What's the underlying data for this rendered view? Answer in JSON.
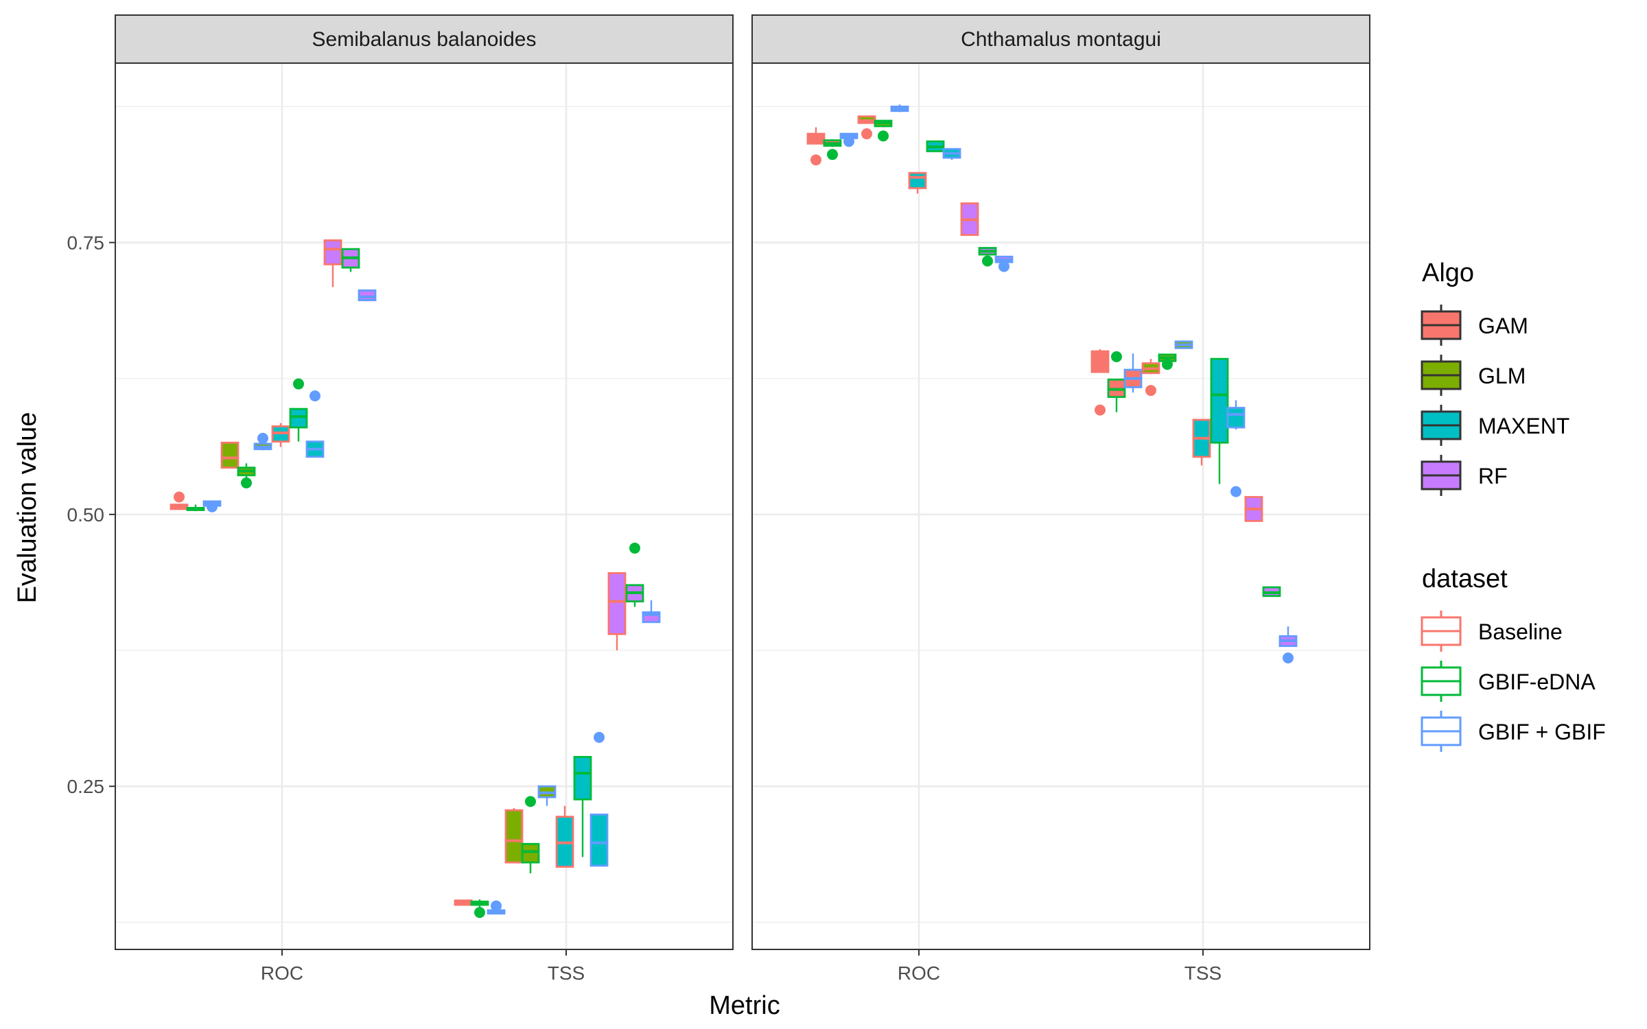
{
  "chart_data": {
    "type": "box",
    "xlabel": "Metric",
    "ylabel": "Evaluation value",
    "ylim": [
      0.1,
      0.915
    ],
    "yticks": [
      0.25,
      0.5,
      0.75
    ],
    "ytick_labels": [
      "0.25",
      "0.50",
      "0.75"
    ],
    "categories": [
      "ROC",
      "TSS"
    ],
    "grid": true,
    "legend_placement": "right",
    "algos": [
      {
        "name": "GAM",
        "color": "#F8766D"
      },
      {
        "name": "GLM",
        "color": "#7CAE00"
      },
      {
        "name": "MAXENT",
        "color": "#00BFC4"
      },
      {
        "name": "RF",
        "color": "#C77CFF"
      }
    ],
    "datasets": [
      {
        "name": "Baseline",
        "color": "#F8766D"
      },
      {
        "name": "GBIF-eDNA",
        "color": "#00BA38"
      },
      {
        "name": "GBIF + GBIF",
        "color": "#619CFF"
      }
    ],
    "legend": {
      "algo_title": "Algo",
      "dataset_title": "dataset"
    },
    "panels": [
      {
        "title": "Semibalanus balanoides",
        "boxes": [
          {
            "metric": "ROC",
            "algo": "GAM",
            "dataset": "Baseline",
            "min": 0.504,
            "q1": 0.505,
            "median": 0.507,
            "q3": 0.509,
            "max": 0.509,
            "outliers": [
              0.516
            ]
          },
          {
            "metric": "ROC",
            "algo": "GAM",
            "dataset": "GBIF-eDNA",
            "min": 0.503,
            "q1": 0.504,
            "median": 0.505,
            "q3": 0.506,
            "max": 0.509,
            "outliers": []
          },
          {
            "metric": "ROC",
            "algo": "GAM",
            "dataset": "GBIF + GBIF",
            "min": 0.506,
            "q1": 0.508,
            "median": 0.51,
            "q3": 0.512,
            "max": 0.512,
            "outliers": [
              0.507
            ]
          },
          {
            "metric": "ROC",
            "algo": "GLM",
            "dataset": "Baseline",
            "min": 0.543,
            "q1": 0.543,
            "median": 0.552,
            "q3": 0.566,
            "max": 0.566,
            "outliers": []
          },
          {
            "metric": "ROC",
            "algo": "GLM",
            "dataset": "GBIF-eDNA",
            "min": 0.534,
            "q1": 0.536,
            "median": 0.54,
            "q3": 0.543,
            "max": 0.547,
            "outliers": [
              0.529
            ]
          },
          {
            "metric": "ROC",
            "algo": "GLM",
            "dataset": "GBIF + GBIF",
            "min": 0.559,
            "q1": 0.56,
            "median": 0.562,
            "q3": 0.565,
            "max": 0.565,
            "outliers": [
              0.57
            ]
          },
          {
            "metric": "ROC",
            "algo": "MAXENT",
            "dataset": "Baseline",
            "min": 0.562,
            "q1": 0.567,
            "median": 0.575,
            "q3": 0.581,
            "max": 0.584,
            "outliers": []
          },
          {
            "metric": "ROC",
            "algo": "MAXENT",
            "dataset": "GBIF-eDNA",
            "min": 0.567,
            "q1": 0.58,
            "median": 0.59,
            "q3": 0.597,
            "max": 0.597,
            "outliers": [
              0.62
            ]
          },
          {
            "metric": "ROC",
            "algo": "MAXENT",
            "dataset": "GBIF + GBIF",
            "min": 0.553,
            "q1": 0.553,
            "median": 0.56,
            "q3": 0.567,
            "max": 0.567,
            "outliers": [
              0.609
            ]
          },
          {
            "metric": "ROC",
            "algo": "RF",
            "dataset": "Baseline",
            "min": 0.709,
            "q1": 0.73,
            "median": 0.744,
            "q3": 0.752,
            "max": 0.752,
            "outliers": []
          },
          {
            "metric": "ROC",
            "algo": "RF",
            "dataset": "GBIF-eDNA",
            "min": 0.723,
            "q1": 0.727,
            "median": 0.736,
            "q3": 0.744,
            "max": 0.744,
            "outliers": []
          },
          {
            "metric": "ROC",
            "algo": "RF",
            "dataset": "GBIF + GBIF",
            "min": 0.696,
            "q1": 0.697,
            "median": 0.7,
            "q3": 0.706,
            "max": 0.706,
            "outliers": []
          },
          {
            "metric": "TSS",
            "algo": "GAM",
            "dataset": "Baseline",
            "min": 0.141,
            "q1": 0.141,
            "median": 0.142,
            "q3": 0.145,
            "max": 0.145,
            "outliers": []
          },
          {
            "metric": "TSS",
            "algo": "GAM",
            "dataset": "GBIF-eDNA",
            "min": 0.139,
            "q1": 0.141,
            "median": 0.142,
            "q3": 0.144,
            "max": 0.146,
            "outliers": [
              0.134
            ]
          },
          {
            "metric": "TSS",
            "algo": "GAM",
            "dataset": "GBIF + GBIF",
            "min": 0.133,
            "q1": 0.133,
            "median": 0.135,
            "q3": 0.136,
            "max": 0.137,
            "outliers": [
              0.14
            ]
          },
          {
            "metric": "TSS",
            "algo": "GLM",
            "dataset": "Baseline",
            "min": 0.18,
            "q1": 0.18,
            "median": 0.2,
            "q3": 0.228,
            "max": 0.23,
            "outliers": []
          },
          {
            "metric": "TSS",
            "algo": "GLM",
            "dataset": "GBIF-eDNA",
            "min": 0.17,
            "q1": 0.18,
            "median": 0.19,
            "q3": 0.197,
            "max": 0.197,
            "outliers": [
              0.236
            ]
          },
          {
            "metric": "TSS",
            "algo": "GLM",
            "dataset": "GBIF + GBIF",
            "min": 0.232,
            "q1": 0.24,
            "median": 0.244,
            "q3": 0.25,
            "max": 0.25,
            "outliers": []
          },
          {
            "metric": "TSS",
            "algo": "MAXENT",
            "dataset": "Baseline",
            "min": 0.176,
            "q1": 0.176,
            "median": 0.198,
            "q3": 0.222,
            "max": 0.232,
            "outliers": []
          },
          {
            "metric": "TSS",
            "algo": "MAXENT",
            "dataset": "GBIF-eDNA",
            "min": 0.185,
            "q1": 0.238,
            "median": 0.262,
            "q3": 0.277,
            "max": 0.277,
            "outliers": []
          },
          {
            "metric": "TSS",
            "algo": "MAXENT",
            "dataset": "GBIF + GBIF",
            "min": 0.177,
            "q1": 0.177,
            "median": 0.198,
            "q3": 0.224,
            "max": 0.224,
            "outliers": [
              0.295
            ]
          },
          {
            "metric": "TSS",
            "algo": "RF",
            "dataset": "Baseline",
            "min": 0.375,
            "q1": 0.39,
            "median": 0.42,
            "q3": 0.446,
            "max": 0.446,
            "outliers": []
          },
          {
            "metric": "TSS",
            "algo": "RF",
            "dataset": "GBIF-eDNA",
            "min": 0.415,
            "q1": 0.42,
            "median": 0.428,
            "q3": 0.435,
            "max": 0.435,
            "outliers": [
              0.469
            ]
          },
          {
            "metric": "TSS",
            "algo": "RF",
            "dataset": "GBIF + GBIF",
            "min": 0.401,
            "q1": 0.401,
            "median": 0.408,
            "q3": 0.41,
            "max": 0.421,
            "outliers": []
          }
        ]
      },
      {
        "title": "Chthamalus montagui",
        "boxes": [
          {
            "metric": "ROC",
            "algo": "GAM",
            "dataset": "Baseline",
            "min": 0.841,
            "q1": 0.841,
            "median": 0.845,
            "q3": 0.85,
            "max": 0.856,
            "outliers": [
              0.826
            ]
          },
          {
            "metric": "ROC",
            "algo": "GAM",
            "dataset": "GBIF-eDNA",
            "min": 0.838,
            "q1": 0.839,
            "median": 0.841,
            "q3": 0.844,
            "max": 0.845,
            "outliers": [
              0.831
            ]
          },
          {
            "metric": "ROC",
            "algo": "GAM",
            "dataset": "GBIF + GBIF",
            "min": 0.843,
            "q1": 0.846,
            "median": 0.848,
            "q3": 0.85,
            "max": 0.85,
            "outliers": [
              0.843
            ]
          },
          {
            "metric": "ROC",
            "algo": "GLM",
            "dataset": "Baseline",
            "min": 0.859,
            "q1": 0.86,
            "median": 0.862,
            "q3": 0.866,
            "max": 0.866,
            "outliers": [
              0.85
            ]
          },
          {
            "metric": "ROC",
            "algo": "GLM",
            "dataset": "GBIF-eDNA",
            "min": 0.856,
            "q1": 0.857,
            "median": 0.86,
            "q3": 0.862,
            "max": 0.862,
            "outliers": [
              0.848
            ]
          },
          {
            "metric": "ROC",
            "algo": "GLM",
            "dataset": "GBIF + GBIF",
            "min": 0.87,
            "q1": 0.871,
            "median": 0.873,
            "q3": 0.875,
            "max": 0.877,
            "outliers": []
          },
          {
            "metric": "ROC",
            "algo": "MAXENT",
            "dataset": "Baseline",
            "min": 0.795,
            "q1": 0.8,
            "median": 0.81,
            "q3": 0.814,
            "max": 0.814,
            "outliers": []
          },
          {
            "metric": "ROC",
            "algo": "MAXENT",
            "dataset": "GBIF-eDNA",
            "min": 0.834,
            "q1": 0.834,
            "median": 0.838,
            "q3": 0.843,
            "max": 0.843,
            "outliers": []
          },
          {
            "metric": "ROC",
            "algo": "MAXENT",
            "dataset": "GBIF + GBIF",
            "min": 0.826,
            "q1": 0.828,
            "median": 0.832,
            "q3": 0.836,
            "max": 0.836,
            "outliers": []
          },
          {
            "metric": "ROC",
            "algo": "RF",
            "dataset": "Baseline",
            "min": 0.757,
            "q1": 0.757,
            "median": 0.771,
            "q3": 0.786,
            "max": 0.786,
            "outliers": []
          },
          {
            "metric": "ROC",
            "algo": "RF",
            "dataset": "GBIF-eDNA",
            "min": 0.739,
            "q1": 0.739,
            "median": 0.742,
            "q3": 0.745,
            "max": 0.745,
            "outliers": [
              0.733
            ]
          },
          {
            "metric": "ROC",
            "algo": "RF",
            "dataset": "GBIF + GBIF",
            "min": 0.732,
            "q1": 0.732,
            "median": 0.734,
            "q3": 0.737,
            "max": 0.737,
            "outliers": [
              0.728
            ]
          },
          {
            "metric": "TSS",
            "algo": "GAM",
            "dataset": "Baseline",
            "min": 0.631,
            "q1": 0.631,
            "median": 0.638,
            "q3": 0.65,
            "max": 0.652,
            "outliers": [
              0.596
            ]
          },
          {
            "metric": "TSS",
            "algo": "GAM",
            "dataset": "GBIF-eDNA",
            "min": 0.594,
            "q1": 0.608,
            "median": 0.615,
            "q3": 0.624,
            "max": 0.624,
            "outliers": [
              0.645
            ]
          },
          {
            "metric": "TSS",
            "algo": "GAM",
            "dataset": "GBIF + GBIF",
            "min": 0.612,
            "q1": 0.617,
            "median": 0.625,
            "q3": 0.633,
            "max": 0.648,
            "outliers": []
          },
          {
            "metric": "TSS",
            "algo": "GLM",
            "dataset": "Baseline",
            "min": 0.629,
            "q1": 0.63,
            "median": 0.634,
            "q3": 0.639,
            "max": 0.643,
            "outliers": [
              0.614
            ]
          },
          {
            "metric": "TSS",
            "algo": "GLM",
            "dataset": "GBIF-eDNA",
            "min": 0.641,
            "q1": 0.641,
            "median": 0.644,
            "q3": 0.647,
            "max": 0.647,
            "outliers": [
              0.638
            ]
          },
          {
            "metric": "TSS",
            "algo": "GLM",
            "dataset": "GBIF + GBIF",
            "min": 0.653,
            "q1": 0.653,
            "median": 0.656,
            "q3": 0.659,
            "max": 0.66,
            "outliers": []
          },
          {
            "metric": "TSS",
            "algo": "MAXENT",
            "dataset": "Baseline",
            "min": 0.545,
            "q1": 0.553,
            "median": 0.57,
            "q3": 0.587,
            "max": 0.587,
            "outliers": []
          },
          {
            "metric": "TSS",
            "algo": "MAXENT",
            "dataset": "GBIF-eDNA",
            "min": 0.528,
            "q1": 0.566,
            "median": 0.61,
            "q3": 0.643,
            "max": 0.643,
            "outliers": []
          },
          {
            "metric": "TSS",
            "algo": "MAXENT",
            "dataset": "GBIF + GBIF",
            "min": 0.578,
            "q1": 0.58,
            "median": 0.592,
            "q3": 0.598,
            "max": 0.605,
            "outliers": [
              0.521
            ]
          },
          {
            "metric": "TSS",
            "algo": "RF",
            "dataset": "Baseline",
            "min": 0.494,
            "q1": 0.494,
            "median": 0.505,
            "q3": 0.516,
            "max": 0.516,
            "outliers": []
          },
          {
            "metric": "TSS",
            "algo": "RF",
            "dataset": "GBIF-eDNA",
            "min": 0.425,
            "q1": 0.425,
            "median": 0.428,
            "q3": 0.433,
            "max": 0.433,
            "outliers": []
          },
          {
            "metric": "TSS",
            "algo": "RF",
            "dataset": "GBIF + GBIF",
            "min": 0.379,
            "q1": 0.379,
            "median": 0.384,
            "q3": 0.388,
            "max": 0.397,
            "outliers": [
              0.368
            ]
          }
        ]
      }
    ]
  }
}
